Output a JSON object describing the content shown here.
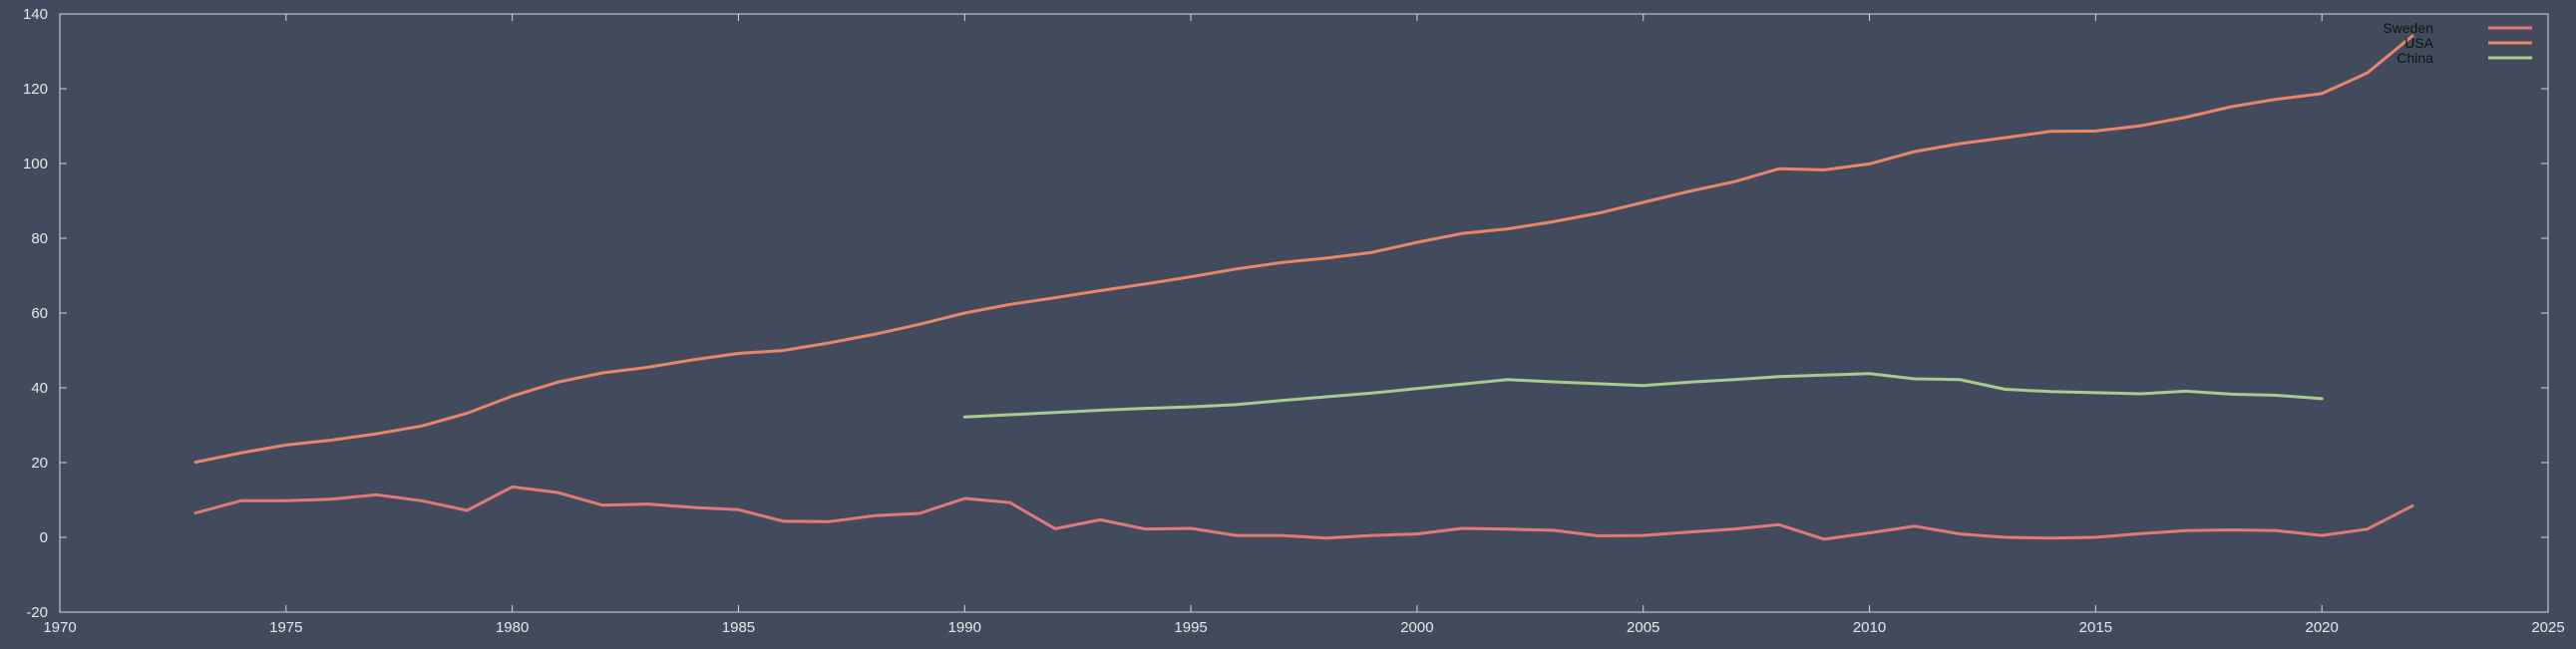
{
  "chart_data": {
    "type": "line",
    "title": "",
    "xlabel": "",
    "ylabel": "",
    "xlim": [
      1970,
      2025
    ],
    "ylim": [
      -20,
      140
    ],
    "x_ticks": [
      1970,
      1975,
      1980,
      1985,
      1990,
      1995,
      2000,
      2005,
      2010,
      2015,
      2020,
      2025
    ],
    "y_ticks": [
      -20,
      0,
      20,
      40,
      60,
      80,
      100,
      120,
      140
    ],
    "grid": false,
    "legend_position": "top-right",
    "series": [
      {
        "name": "Sweden",
        "color": "#e07a7a",
        "x": [
          1973,
          1974,
          1975,
          1976,
          1977,
          1978,
          1979,
          1980,
          1981,
          1982,
          1983,
          1984,
          1985,
          1986,
          1987,
          1988,
          1989,
          1990,
          1991,
          1992,
          1993,
          1994,
          1995,
          1996,
          1997,
          1998,
          1999,
          2000,
          2001,
          2002,
          2003,
          2004,
          2005,
          2006,
          2007,
          2008,
          2009,
          2010,
          2011,
          2012,
          2013,
          2014,
          2015,
          2016,
          2017,
          2018,
          2019,
          2020,
          2021,
          2022
        ],
        "y": [
          6.5,
          9.8,
          9.8,
          10.2,
          11.4,
          9.8,
          7.2,
          13.5,
          12.0,
          8.6,
          8.9,
          8.0,
          7.4,
          4.3,
          4.2,
          5.8,
          6.4,
          10.4,
          9.3,
          2.3,
          4.7,
          2.2,
          2.4,
          0.5,
          0.5,
          -0.2,
          0.5,
          0.9,
          2.4,
          2.2,
          1.9,
          0.4,
          0.5,
          1.4,
          2.2,
          3.4,
          -0.5,
          1.2,
          3.0,
          0.9,
          0.0,
          -0.2,
          0.0,
          1.0,
          1.8,
          2.0,
          1.8,
          0.5,
          2.2,
          8.4
        ]
      },
      {
        "name": "USA",
        "color": "#e8866a",
        "x": [
          1973,
          1974,
          1975,
          1976,
          1977,
          1978,
          1979,
          1980,
          1981,
          1982,
          1983,
          1984,
          1985,
          1986,
          1987,
          1988,
          1989,
          1990,
          1991,
          1992,
          1993,
          1994,
          1995,
          1996,
          1997,
          1998,
          1999,
          2000,
          2001,
          2002,
          2003,
          2004,
          2005,
          2006,
          2007,
          2008,
          2009,
          2010,
          2011,
          2012,
          2013,
          2014,
          2015,
          2016,
          2017,
          2018,
          2019,
          2020,
          2021,
          2022
        ],
        "y": [
          20.1,
          22.6,
          24.7,
          26.0,
          27.7,
          29.8,
          33.2,
          37.8,
          41.5,
          44.0,
          45.5,
          47.5,
          49.2,
          50.0,
          52.0,
          54.3,
          57.0,
          60.0,
          62.3,
          64.1,
          66.0,
          67.8,
          69.7,
          71.8,
          73.5,
          74.7,
          76.2,
          78.9,
          81.3,
          82.5,
          84.4,
          86.7,
          89.6,
          92.5,
          95.1,
          98.6,
          98.3,
          99.9,
          103.2,
          105.3,
          106.9,
          108.6,
          108.7,
          110.1,
          112.4,
          115.2,
          117.2,
          118.7,
          124.2,
          134.1
        ]
      },
      {
        "name": "China",
        "color": "#a8cc8c",
        "x": [
          1990,
          1991,
          1992,
          1993,
          1994,
          1995,
          1996,
          1997,
          1998,
          1999,
          2000,
          2001,
          2002,
          2003,
          2004,
          2005,
          2006,
          2007,
          2008,
          2009,
          2010,
          2011,
          2012,
          2013,
          2014,
          2015,
          2016,
          2017,
          2018,
          2019,
          2020
        ],
        "y": [
          32.2,
          32.8,
          33.4,
          34.0,
          34.5,
          34.9,
          35.5,
          36.6,
          37.6,
          38.6,
          39.8,
          41.0,
          42.2,
          41.6,
          41.1,
          40.6,
          41.5,
          42.2,
          43.0,
          43.4,
          43.8,
          42.4,
          42.2,
          39.6,
          39.0,
          38.7,
          38.4,
          39.1,
          38.3,
          38.0,
          37.1
        ]
      }
    ]
  }
}
